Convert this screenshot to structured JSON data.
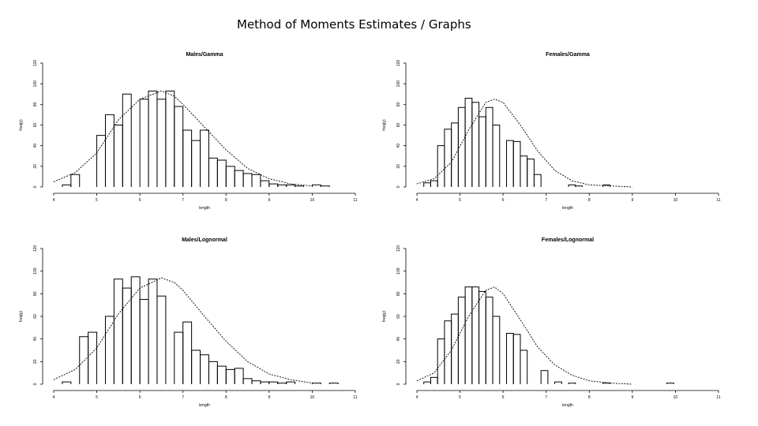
{
  "slide_title": "Method of Moments Estimates / Graphs",
  "chart_data": [
    {
      "type": "bar",
      "title": "Males/Gamma",
      "xlabel": "length",
      "ylabel": "freq(y)",
      "xlim": [
        4,
        11
      ],
      "ylim": [
        0,
        120
      ],
      "xticks": [
        "4",
        "5",
        "6",
        "7",
        "8",
        "9",
        "10",
        "11"
      ],
      "yticks": [
        "0",
        "20",
        "40",
        "60",
        "80",
        "100",
        "120"
      ],
      "bar_width": 0.2,
      "bars_x": [
        4.2,
        4.4,
        4.6,
        4.8,
        5.0,
        5.2,
        5.4,
        5.6,
        5.8,
        6.0,
        6.2,
        6.4,
        6.6,
        6.8,
        7.0,
        7.2,
        7.4,
        7.6,
        7.8,
        8.0,
        8.2,
        8.4,
        8.6,
        8.8,
        9.0,
        9.2,
        9.4,
        9.6,
        9.8,
        10.0,
        10.2,
        10.4
      ],
      "bars_y": [
        2,
        12,
        0,
        0,
        50,
        70,
        60,
        90,
        0,
        85,
        93,
        85,
        93,
        78,
        55,
        45,
        55,
        28,
        26,
        20,
        16,
        13,
        12,
        6,
        3,
        2,
        2,
        1,
        0,
        2,
        1,
        0
      ],
      "curve_x": [
        4.0,
        4.5,
        5.0,
        5.5,
        6.0,
        6.5,
        6.8,
        7.0,
        7.5,
        8.0,
        8.5,
        9.0,
        9.5,
        10.0
      ],
      "curve_y": [
        5,
        14,
        33,
        65,
        85,
        93,
        88,
        80,
        58,
        36,
        18,
        8,
        3,
        1
      ]
    },
    {
      "type": "bar",
      "title": "Females/Gamma",
      "xlabel": "length",
      "ylabel": "freq(y)",
      "xlim": [
        4,
        11
      ],
      "ylim": [
        0,
        120
      ],
      "xticks": [
        "4",
        "5",
        "6",
        "7",
        "8",
        "9",
        "10",
        "11"
      ],
      "yticks": [
        "0",
        "20",
        "40",
        "60",
        "80",
        "100",
        "120"
      ],
      "bar_width": 0.16,
      "bars_x": [
        4.16,
        4.32,
        4.48,
        4.64,
        4.8,
        4.96,
        5.12,
        5.28,
        5.44,
        5.6,
        5.76,
        5.92,
        6.08,
        6.24,
        6.4,
        6.56,
        6.72,
        6.88,
        7.04,
        7.2,
        7.36,
        7.52,
        7.68,
        7.84,
        8.0,
        8.16,
        8.32,
        8.48,
        8.64,
        8.8
      ],
      "bars_y": [
        4,
        6,
        40,
        56,
        62,
        77,
        86,
        82,
        68,
        77,
        60,
        0,
        45,
        44,
        30,
        27,
        12,
        0,
        0,
        0,
        0,
        2,
        1,
        0,
        0,
        0,
        2,
        0,
        0,
        0
      ],
      "curve_x": [
        4.0,
        4.4,
        4.8,
        5.2,
        5.6,
        5.8,
        6.0,
        6.4,
        6.8,
        7.2,
        7.6,
        8.0,
        8.5,
        9.0
      ],
      "curve_y": [
        3,
        8,
        24,
        55,
        82,
        85,
        82,
        60,
        35,
        16,
        6,
        2,
        1,
        0
      ]
    },
    {
      "type": "bar",
      "title": "Males/Lognormal",
      "xlabel": "length",
      "ylabel": "freq(y)",
      "xlim": [
        4,
        11
      ],
      "ylim": [
        0,
        120
      ],
      "xticks": [
        "4",
        "5",
        "6",
        "7",
        "8",
        "9",
        "10",
        "11"
      ],
      "yticks": [
        "0",
        "20",
        "40",
        "60",
        "80",
        "100",
        "120"
      ],
      "bar_width": 0.2,
      "bars_x": [
        4.2,
        4.4,
        4.6,
        4.8,
        5.0,
        5.2,
        5.4,
        5.6,
        5.8,
        6.0,
        6.2,
        6.4,
        6.6,
        6.8,
        7.0,
        7.2,
        7.4,
        7.6,
        7.8,
        8.0,
        8.2,
        8.4,
        8.6,
        8.8,
        9.0,
        9.2,
        9.4,
        9.6,
        9.8,
        10.0,
        10.2,
        10.4
      ],
      "bars_y": [
        2,
        0,
        42,
        46,
        0,
        60,
        93,
        85,
        95,
        75,
        93,
        78,
        0,
        46,
        55,
        30,
        26,
        20,
        16,
        13,
        14,
        5,
        3,
        2,
        2,
        1,
        2,
        0,
        0,
        1,
        0,
        1
      ],
      "curve_x": [
        4.0,
        4.5,
        5.0,
        5.5,
        6.0,
        6.5,
        6.8,
        7.0,
        7.5,
        8.0,
        8.5,
        9.0,
        9.5,
        10.0
      ],
      "curve_y": [
        4,
        13,
        32,
        62,
        85,
        94,
        90,
        83,
        60,
        38,
        20,
        9,
        4,
        1
      ]
    },
    {
      "type": "bar",
      "title": "Females/Lognormal",
      "xlabel": "length",
      "ylabel": "freq(y)",
      "xlim": [
        4,
        11
      ],
      "ylim": [
        0,
        120
      ],
      "xticks": [
        "4",
        "5",
        "6",
        "7",
        "8",
        "9",
        "10",
        "11"
      ],
      "yticks": [
        "0",
        "20",
        "40",
        "60",
        "80",
        "100",
        "120"
      ],
      "bar_width": 0.16,
      "bars_x": [
        4.16,
        4.32,
        4.48,
        4.64,
        4.8,
        4.96,
        5.12,
        5.28,
        5.44,
        5.6,
        5.76,
        5.92,
        6.08,
        6.24,
        6.4,
        6.56,
        6.72,
        6.88,
        7.04,
        7.2,
        7.36,
        7.52,
        7.68,
        7.84,
        8.0,
        8.16,
        8.32,
        8.48,
        8.64,
        8.8,
        8.96,
        9.12,
        9.28,
        9.44,
        9.6,
        9.8
      ],
      "bars_y": [
        2,
        6,
        40,
        56,
        62,
        77,
        86,
        86,
        82,
        77,
        60,
        0,
        45,
        44,
        30,
        0,
        0,
        12,
        0,
        2,
        0,
        1,
        0,
        0,
        0,
        0,
        1,
        0,
        0,
        0,
        0,
        0,
        0,
        0,
        0,
        1
      ],
      "curve_x": [
        4.0,
        4.4,
        4.8,
        5.2,
        5.6,
        5.8,
        6.0,
        6.4,
        6.8,
        7.2,
        7.6,
        8.0,
        8.5,
        9.0
      ],
      "curve_y": [
        3,
        10,
        30,
        60,
        83,
        86,
        80,
        57,
        33,
        17,
        8,
        3,
        1,
        0
      ]
    }
  ]
}
